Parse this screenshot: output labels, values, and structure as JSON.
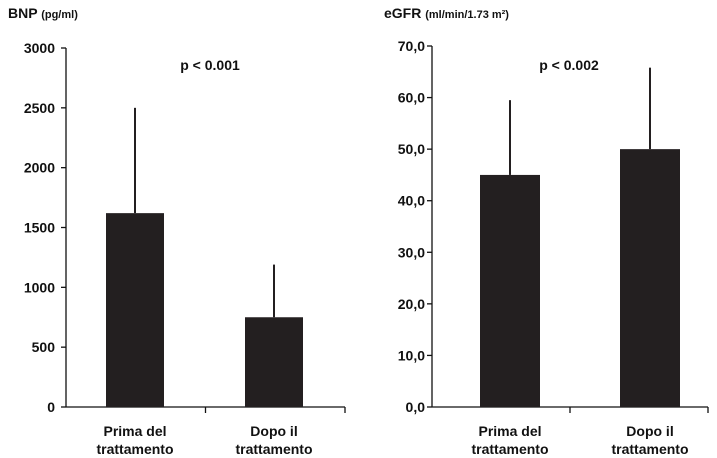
{
  "chart_data": [
    {
      "type": "bar",
      "ylabel": "BNP",
      "yunit": "(pg/ml)",
      "annotation": "p < 0.001",
      "categories": [
        [
          "Prima del",
          "trattamento"
        ],
        [
          "Dopo il",
          "trattamento"
        ]
      ],
      "values": [
        1620,
        750
      ],
      "error_upper": [
        2500,
        1190
      ],
      "ylim": [
        0,
        3000
      ],
      "yticks": [
        0,
        500,
        1000,
        1500,
        2000,
        2500,
        3000
      ],
      "ytick_labels": [
        "0",
        "500",
        "1000",
        "1500",
        "2000",
        "2500",
        "3000"
      ],
      "grid": false,
      "bar_color": "#231f20"
    },
    {
      "type": "bar",
      "ylabel": "eGFR",
      "yunit": "(ml/min/1.73 m²)",
      "annotation": "p < 0.002",
      "categories": [
        [
          "Prima del",
          "trattamento"
        ],
        [
          "Dopo il",
          "trattamento"
        ]
      ],
      "values": [
        45.0,
        50.0
      ],
      "error_upper": [
        59.5,
        65.8
      ],
      "ylim": [
        0,
        70
      ],
      "yticks": [
        0,
        10,
        20,
        30,
        40,
        50,
        60,
        70
      ],
      "ytick_labels": [
        "0,0",
        "10,0",
        "20,0",
        "30,0",
        "40,0",
        "50,0",
        "60,0",
        "70,0"
      ],
      "grid": false,
      "bar_color": "#231f20"
    }
  ]
}
